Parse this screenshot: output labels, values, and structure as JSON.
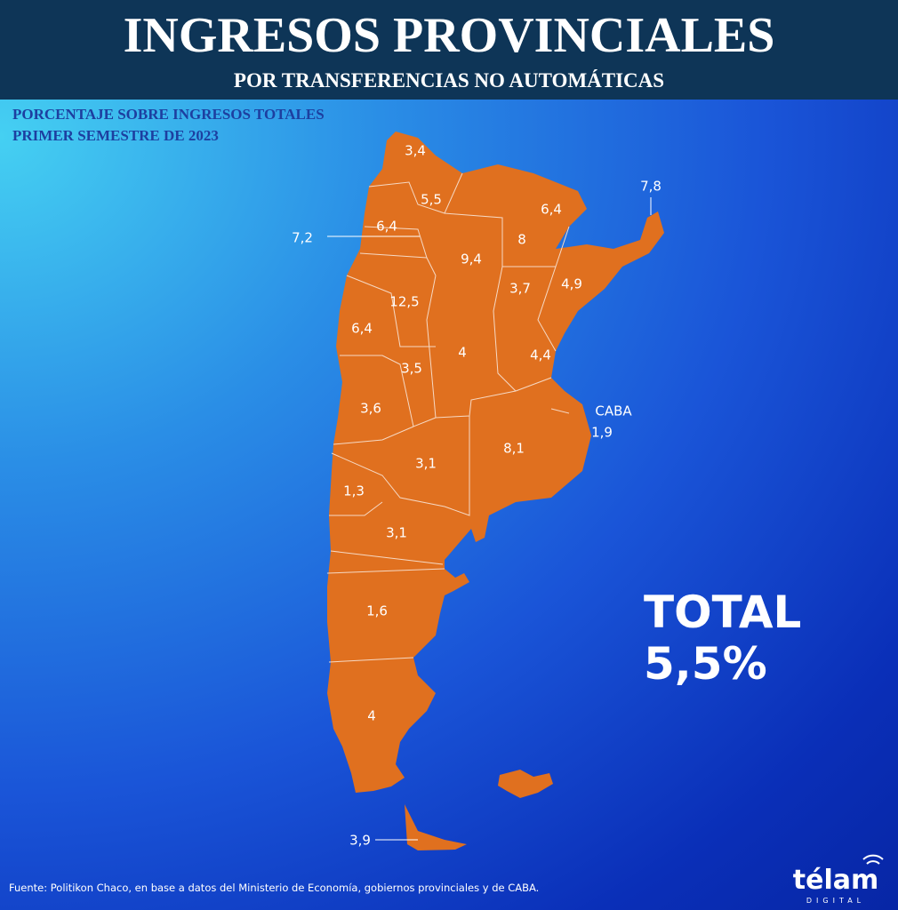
{
  "header": {
    "title": "INGRESOS PROVINCIALES",
    "subtitle": "POR TRANSFERENCIAS NO AUTOMÁTICAS"
  },
  "caption": [
    "PORCENTAJE SOBRE INGRESOS TOTALES",
    "PRIMER SEMESTRE DE 2023"
  ],
  "map": {
    "labels": [
      "3,4",
      "5,5",
      "6,4",
      "7,8",
      "6,4",
      "7,2",
      "8",
      "9,4",
      "3,7",
      "4,9",
      "12,5",
      "6,4",
      "4",
      "4,4",
      "3,5",
      "3,6",
      "CABA",
      "1,9",
      "8,1",
      "3,1",
      "1,3",
      "3,1",
      "1,6",
      "4",
      "3,9"
    ]
  },
  "total": {
    "label": "TOTAL",
    "value": "5,5%"
  },
  "source": "Fuente: Politikon Chaco, en base a datos del Ministerio de Economía, gobiernos provinciales y de CABA.",
  "logo": {
    "name": "télam",
    "tagline": "DIGITAL"
  }
}
